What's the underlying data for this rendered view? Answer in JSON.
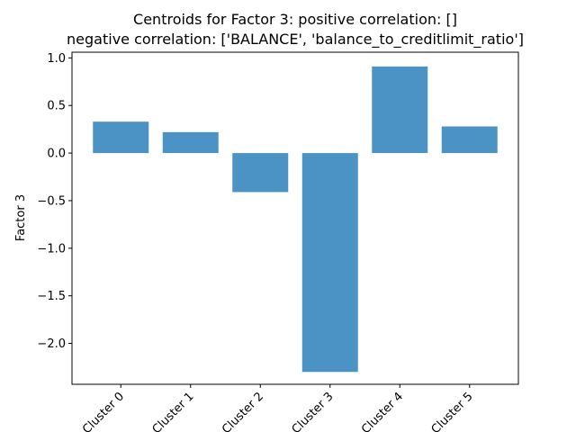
{
  "chart_data": {
    "type": "bar",
    "title_lines": [
      "Centroids for Factor 3: positive correlation: []",
      "negative correlation: ['BALANCE', 'balance_to_creditlimit_ratio']"
    ],
    "xlabel": "",
    "ylabel": "Factor 3",
    "categories": [
      "Cluster 0",
      "Cluster 1",
      "Cluster 2",
      "Cluster 3",
      "Cluster 4",
      "Cluster 5"
    ],
    "values": [
      0.33,
      0.22,
      -0.41,
      -2.3,
      0.91,
      0.28
    ],
    "ylim": [
      -2.43,
      1.06
    ],
    "yticks": [
      1.0,
      0.5,
      0.0,
      -0.5,
      -1.0,
      -1.5,
      -2.0
    ],
    "ytick_labels": [
      "1.0",
      "0.5",
      "0.0",
      "−0.5",
      "−1.0",
      "−1.5",
      "−2.0"
    ],
    "bar_color": "#4c93c5",
    "grid": false,
    "legend": "none"
  }
}
